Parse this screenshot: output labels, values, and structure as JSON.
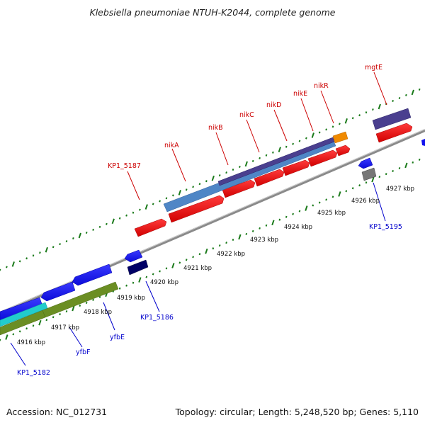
{
  "title": "Klebsiella pneumoniae NTUH-K2044, complete genome",
  "footer": {
    "accession": "Accession: NC_012731",
    "summary": "Topology: circular; Length: 5,248,520 bp; Genes: 5,110"
  },
  "scale_labels": [
    "4916 kbp",
    "4917 kbp",
    "4918 kbp",
    "4919 kbp",
    "4920 kbp",
    "4921 kbp",
    "4922 kbp",
    "4923 kbp",
    "4924 kbp",
    "4925 kbp",
    "4926 kbp",
    "4927 kbp"
  ],
  "gene_labels_top": [
    "KP1_5187",
    "nikA",
    "nikB",
    "nikC",
    "nikD",
    "nikE",
    "nikR",
    "mgtE"
  ],
  "gene_labels_bottom": [
    "KP1_5182",
    "yfbF",
    "yfbE",
    "KP1_5186",
    "KP1_5195"
  ],
  "colors": {
    "forward_gene": "#ee0000",
    "reverse_gene": "#1111ee",
    "operon_blue": "#4f86c6",
    "operon_purple": "#4a3f8f",
    "orange": "#f08a00",
    "olive": "#6b8e23",
    "cyan": "#22cccc",
    "navy": "#000066",
    "gray_gene": "#777777",
    "backbone": "#999999",
    "ticks": "#1a7a1a"
  }
}
